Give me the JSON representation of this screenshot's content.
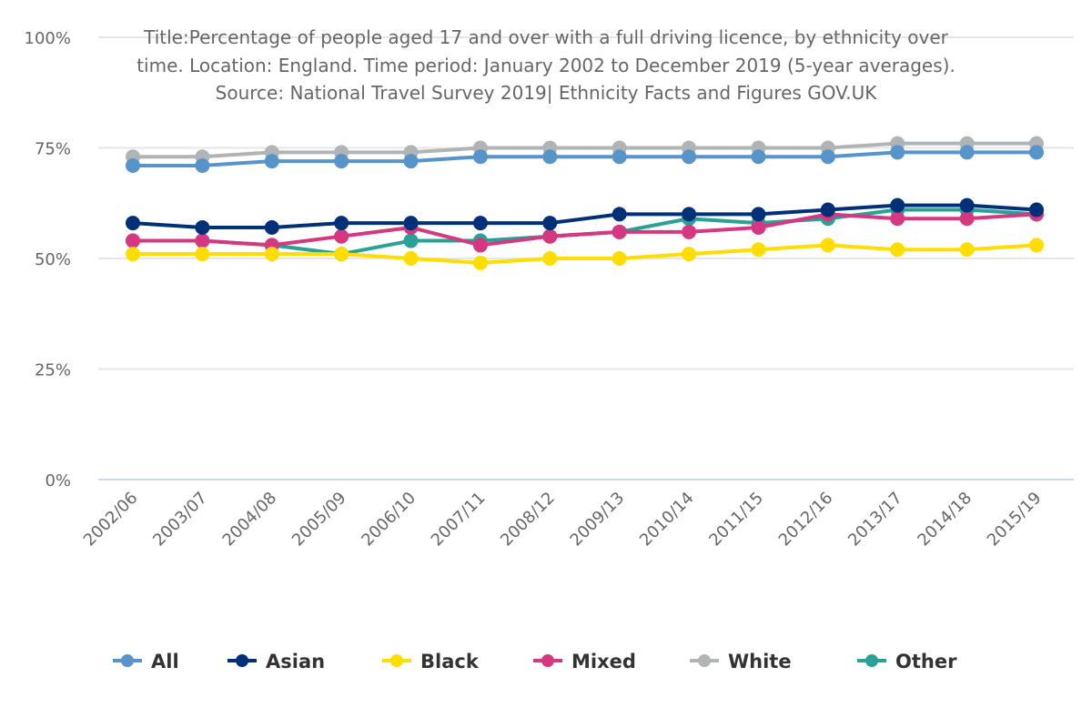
{
  "chart_data": {
    "type": "line",
    "title_lines": [
      "Title:Percentage of people aged 17 and over with a full driving licence, by ethnicity over",
      "time. Location: England. Time period: January 2002 to December 2019 (5-year averages).",
      "Source: National Travel Survey 2019| Ethnicity Facts and Figures GOV.UK"
    ],
    "title": "Title:Percentage of people aged 17 and over with a full driving licence, by ethnicity over time. Location: England. Time period: January 2002 to December 2019 (5-year averages). Source: National Travel Survey 2019| Ethnicity Facts and Figures GOV.UK",
    "xlabel": "",
    "ylabel": "",
    "ylim": [
      0,
      100
    ],
    "yticks": [
      0,
      25,
      50,
      75,
      100
    ],
    "ytick_labels": [
      "0%",
      "25%",
      "50%",
      "75%",
      "100%"
    ],
    "grid": true,
    "legend_position": "bottom",
    "categories": [
      "2002/06",
      "2003/07",
      "2004/08",
      "2005/09",
      "2006/10",
      "2007/11",
      "2008/12",
      "2009/13",
      "2010/14",
      "2011/15",
      "2012/16",
      "2013/17",
      "2014/18",
      "2015/19"
    ],
    "series": [
      {
        "name": "All",
        "color": "#5694ca",
        "values": [
          71,
          71,
          72,
          72,
          72,
          73,
          73,
          73,
          73,
          73,
          73,
          74,
          74,
          74
        ]
      },
      {
        "name": "Asian",
        "color": "#003078",
        "values": [
          58,
          57,
          57,
          58,
          58,
          58,
          58,
          60,
          60,
          60,
          61,
          62,
          62,
          61
        ]
      },
      {
        "name": "Black",
        "color": "#ffdd00",
        "values": [
          51,
          51,
          51,
          51,
          50,
          49,
          50,
          50,
          51,
          52,
          53,
          52,
          52,
          53
        ]
      },
      {
        "name": "Mixed",
        "color": "#d53880",
        "values": [
          54,
          54,
          53,
          55,
          57,
          53,
          55,
          56,
          56,
          57,
          60,
          59,
          59,
          60
        ]
      },
      {
        "name": "White",
        "color": "#b1b4b6",
        "values": [
          73,
          73,
          74,
          74,
          74,
          75,
          75,
          75,
          75,
          75,
          75,
          76,
          76,
          76
        ]
      },
      {
        "name": "Other",
        "color": "#28a197",
        "values": [
          54,
          54,
          53,
          51,
          54,
          54,
          55,
          56,
          59,
          58,
          59,
          61,
          61,
          60
        ]
      }
    ],
    "draw_order": [
      "Other",
      "White",
      "Mixed",
      "Black",
      "Asian",
      "All"
    ]
  },
  "colors": {
    "gridline": "#e6e6e6",
    "axis_line": "#ccd6eb",
    "text": "#666666",
    "legend_text": "#333333"
  }
}
